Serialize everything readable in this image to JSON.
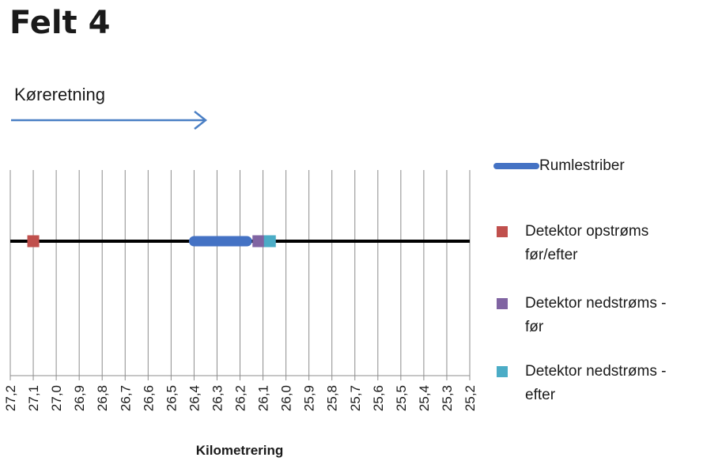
{
  "title": "Felt 4",
  "direction_label": "Køreretning",
  "chart_data": {
    "type": "line",
    "xlabel": "Kilometrering",
    "ylabel": "",
    "x_axis_reversed": true,
    "xlim": [
      25.2,
      27.2
    ],
    "xticks": [
      "27,2",
      "27,1",
      "27,0",
      "26,9",
      "26,8",
      "26,7",
      "26,6",
      "26,5",
      "26,4",
      "26,3",
      "26,2",
      "26,1",
      "26,0",
      "25,9",
      "25,8",
      "25,7",
      "25,6",
      "25,5",
      "25,4",
      "25,3",
      "25,2"
    ],
    "grid": true,
    "road": {
      "from": 27.2,
      "to": 25.2,
      "color": "#000000"
    },
    "series": [
      {
        "name": "Rumlestriber",
        "kind": "line",
        "x": [
          26.4,
          26.17
        ],
        "color": "#4472C4"
      },
      {
        "name": "Detektor opstrøms før/efter",
        "kind": "marker",
        "x": [
          27.1
        ],
        "color": "#C0504D"
      },
      {
        "name": "Detektor nedstrøms - før",
        "kind": "marker",
        "x": [
          26.12
        ],
        "color": "#8064A2"
      },
      {
        "name": "Detektor nedstrøms - efter",
        "kind": "marker",
        "x": [
          26.07
        ],
        "color": "#4BACC6"
      }
    ],
    "legend_position": "right"
  }
}
